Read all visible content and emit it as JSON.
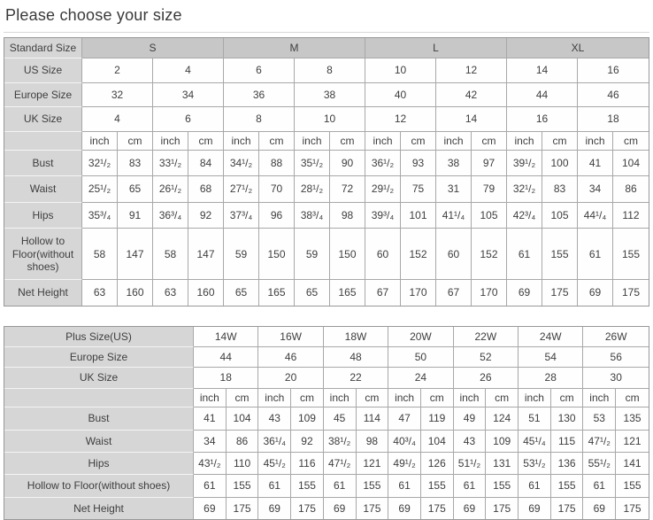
{
  "page_title": "Please choose your size",
  "tables": [
    {
      "name": "standard-size-table",
      "rows": [
        {
          "type": "group",
          "label": "Standard Size",
          "span": 4,
          "cells": [
            "S",
            "M",
            "L",
            "XL"
          ]
        },
        {
          "type": "size",
          "label": "US Size",
          "span": 2,
          "cells": [
            "2",
            "4",
            "6",
            "8",
            "10",
            "12",
            "14",
            "16"
          ]
        },
        {
          "type": "size",
          "label": "Europe Size",
          "span": 2,
          "cells": [
            "32",
            "34",
            "36",
            "38",
            "40",
            "42",
            "44",
            "46"
          ]
        },
        {
          "type": "size",
          "label": "UK Size",
          "span": 2,
          "cells": [
            "4",
            "6",
            "8",
            "10",
            "12",
            "14",
            "16",
            "18"
          ]
        },
        {
          "type": "unit",
          "label": "",
          "span": 1,
          "cells": [
            "inch",
            "cm",
            "inch",
            "cm",
            "inch",
            "cm",
            "inch",
            "cm",
            "inch",
            "cm",
            "inch",
            "cm",
            "inch",
            "cm",
            "inch",
            "cm"
          ]
        },
        {
          "type": "measure",
          "label": "Bust",
          "span": 1,
          "cells": [
            "32¹/₂",
            "83",
            "33¹/₂",
            "84",
            "34¹/₂",
            "88",
            "35¹/₂",
            "90",
            "36¹/₂",
            "93",
            "38",
            "97",
            "39¹/₂",
            "100",
            "41",
            "104"
          ]
        },
        {
          "type": "measure",
          "label": "Waist",
          "span": 1,
          "cells": [
            "25¹/₂",
            "65",
            "26¹/₂",
            "68",
            "27¹/₂",
            "70",
            "28¹/₂",
            "72",
            "29¹/₂",
            "75",
            "31",
            "79",
            "32¹/₂",
            "83",
            "34",
            "86"
          ]
        },
        {
          "type": "measure",
          "label": "Hips",
          "span": 1,
          "cells": [
            "35³/₄",
            "91",
            "36³/₄",
            "92",
            "37³/₄",
            "96",
            "38³/₄",
            "98",
            "39³/₄",
            "101",
            "41¹/₄",
            "105",
            "42³/₄",
            "105",
            "44¹/₄",
            "112"
          ]
        },
        {
          "type": "measure",
          "label": "Hollow to Floor(without shoes)",
          "span": 1,
          "cells": [
            "58",
            "147",
            "58",
            "147",
            "59",
            "150",
            "59",
            "150",
            "60",
            "152",
            "60",
            "152",
            "61",
            "155",
            "61",
            "155"
          ]
        },
        {
          "type": "measure",
          "label": "Net Height",
          "span": 1,
          "cells": [
            "63",
            "160",
            "63",
            "160",
            "65",
            "165",
            "65",
            "165",
            "67",
            "170",
            "67",
            "170",
            "69",
            "175",
            "69",
            "175"
          ]
        }
      ]
    },
    {
      "name": "plus-size-table",
      "rows": [
        {
          "type": "size",
          "label": "Plus Size(US)",
          "span": 2,
          "cells": [
            "14W",
            "16W",
            "18W",
            "20W",
            "22W",
            "24W",
            "26W"
          ]
        },
        {
          "type": "size",
          "label": "Europe Size",
          "span": 2,
          "cells": [
            "44",
            "46",
            "48",
            "50",
            "52",
            "54",
            "56"
          ]
        },
        {
          "type": "size",
          "label": "UK Size",
          "span": 2,
          "cells": [
            "18",
            "20",
            "22",
            "24",
            "26",
            "28",
            "30"
          ]
        },
        {
          "type": "unit",
          "label": "",
          "span": 1,
          "cells": [
            "inch",
            "cm",
            "inch",
            "cm",
            "inch",
            "cm",
            "inch",
            "cm",
            "inch",
            "cm",
            "inch",
            "cm",
            "inch",
            "cm"
          ]
        },
        {
          "type": "measure",
          "label": "Bust",
          "span": 1,
          "cells": [
            "41",
            "104",
            "43",
            "109",
            "45",
            "114",
            "47",
            "119",
            "49",
            "124",
            "51",
            "130",
            "53",
            "135"
          ]
        },
        {
          "type": "measure",
          "label": "Waist",
          "span": 1,
          "cells": [
            "34",
            "86",
            "36¹/₄",
            "92",
            "38¹/₂",
            "98",
            "40³/₄",
            "104",
            "43",
            "109",
            "45¹/₄",
            "115",
            "47¹/₂",
            "121"
          ]
        },
        {
          "type": "measure",
          "label": "Hips",
          "span": 1,
          "cells": [
            "43¹/₂",
            "110",
            "45¹/₂",
            "116",
            "47¹/₂",
            "121",
            "49¹/₂",
            "126",
            "51¹/₂",
            "131",
            "53¹/₂",
            "136",
            "55¹/₂",
            "141"
          ]
        },
        {
          "type": "measure",
          "label": "Hollow to Floor(without shoes)",
          "span": 1,
          "cells": [
            "61",
            "155",
            "61",
            "155",
            "61",
            "155",
            "61",
            "155",
            "61",
            "155",
            "61",
            "155",
            "61",
            "155"
          ]
        },
        {
          "type": "measure",
          "label": "Net Height",
          "span": 1,
          "cells": [
            "69",
            "175",
            "69",
            "175",
            "69",
            "175",
            "69",
            "175",
            "69",
            "175",
            "69",
            "175",
            "69",
            "175"
          ]
        }
      ]
    }
  ]
}
